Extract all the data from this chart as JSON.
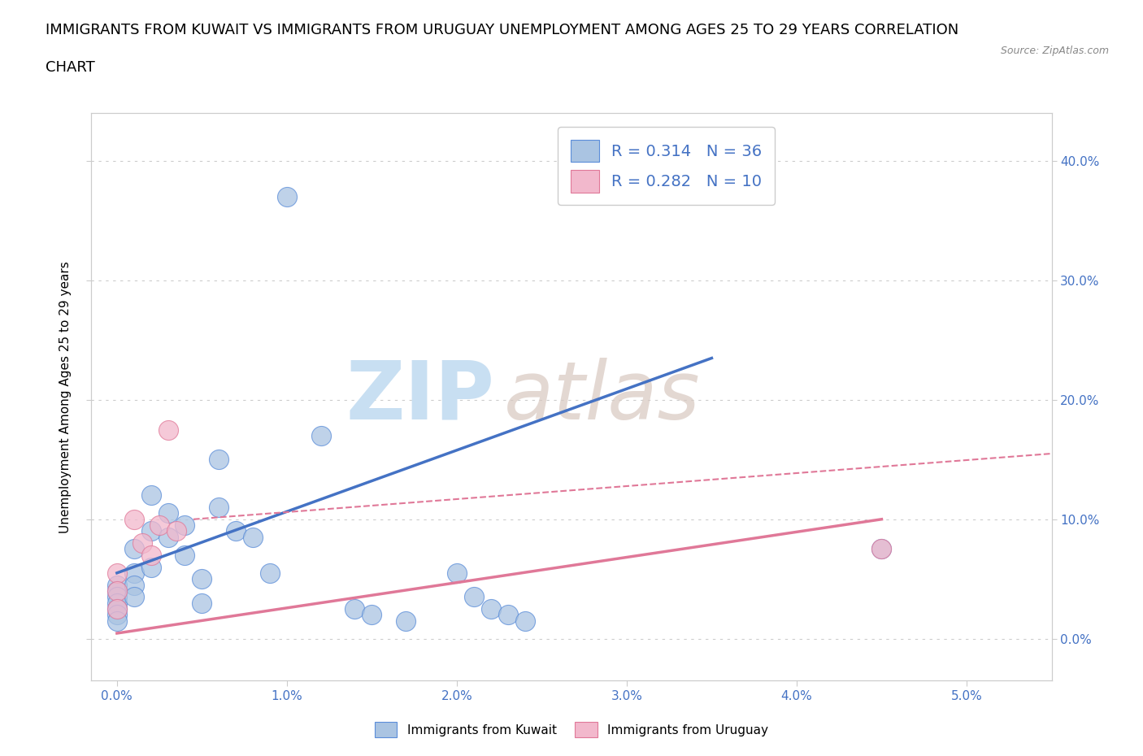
{
  "title_line1": "IMMIGRANTS FROM KUWAIT VS IMMIGRANTS FROM URUGUAY UNEMPLOYMENT AMONG AGES 25 TO 29 YEARS CORRELATION",
  "title_line2": "CHART",
  "source_text": "Source: ZipAtlas.com",
  "xlabel_vals": [
    0.0,
    1.0,
    2.0,
    3.0,
    4.0,
    5.0
  ],
  "ylabel_vals": [
    0.0,
    10.0,
    20.0,
    30.0,
    40.0
  ],
  "ylabel_label": "Unemployment Among Ages 25 to 29 years",
  "xlim": [
    -0.15,
    5.5
  ],
  "ylim": [
    -3.5,
    44.0
  ],
  "kuwait_R": "0.314",
  "kuwait_N": "36",
  "uruguay_R": "0.282",
  "uruguay_N": "10",
  "kuwait_color": "#aac4e2",
  "uruguay_color": "#f2b8cc",
  "kuwait_edge_color": "#5b8dd9",
  "uruguay_edge_color": "#e07898",
  "kuwait_line_color": "#4472C4",
  "uruguay_line_color": "#e07898",
  "watermark_zip": "ZIP",
  "watermark_atlas": "atlas",
  "kuwait_x": [
    0.0,
    0.0,
    0.0,
    0.0,
    0.0,
    0.0,
    0.0,
    0.1,
    0.1,
    0.1,
    0.1,
    0.2,
    0.2,
    0.2,
    0.3,
    0.3,
    0.4,
    0.4,
    0.5,
    0.5,
    0.6,
    0.6,
    0.7,
    0.8,
    0.9,
    1.0,
    1.2,
    1.4,
    1.5,
    1.7,
    2.0,
    2.1,
    2.2,
    2.3,
    2.4,
    4.5
  ],
  "kuwait_y": [
    4.5,
    4.0,
    3.5,
    3.0,
    2.5,
    2.0,
    1.5,
    7.5,
    5.5,
    4.5,
    3.5,
    12.0,
    9.0,
    6.0,
    10.5,
    8.5,
    9.5,
    7.0,
    5.0,
    3.0,
    15.0,
    11.0,
    9.0,
    8.5,
    5.5,
    37.0,
    17.0,
    2.5,
    2.0,
    1.5,
    5.5,
    3.5,
    2.5,
    2.0,
    1.5,
    7.5
  ],
  "uruguay_x": [
    0.0,
    0.0,
    0.0,
    0.1,
    0.15,
    0.2,
    0.25,
    0.3,
    0.35,
    4.5
  ],
  "uruguay_y": [
    5.5,
    4.0,
    2.5,
    10.0,
    8.0,
    7.0,
    9.5,
    17.5,
    9.0,
    7.5
  ],
  "kuwait_trend": [
    0.0,
    5.5,
    3.5,
    23.5
  ],
  "uruguay_trend_solid": [
    0.0,
    0.45,
    4.5,
    10.0
  ],
  "uruguay_trend_dashed": [
    0.45,
    10.0,
    5.5,
    15.5
  ],
  "grid_color": "#cccccc",
  "background_color": "#ffffff",
  "title_fontsize": 13,
  "axis_label_fontsize": 11,
  "tick_fontsize": 11,
  "legend_color": "#4472C4"
}
